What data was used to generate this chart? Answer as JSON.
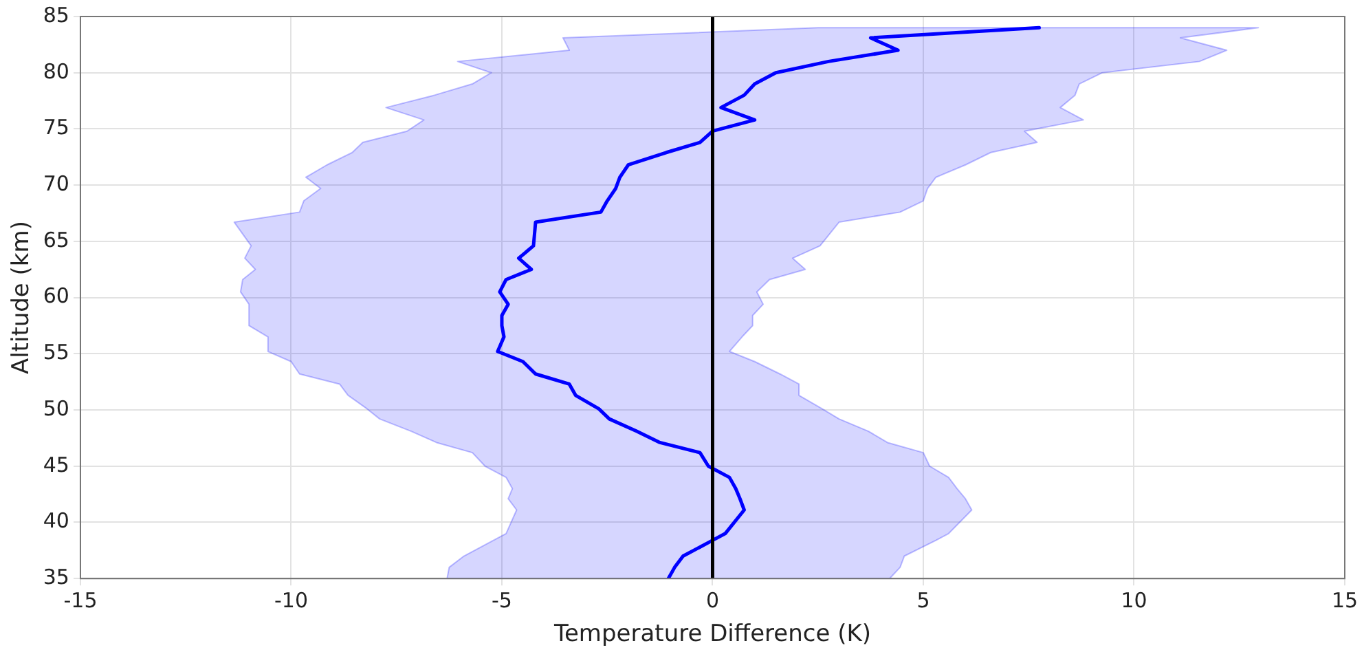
{
  "chart_data": {
    "type": "line",
    "orientation": "horizontal",
    "xlabel": "Temperature Difference (K)",
    "ylabel": "Altitude (km)",
    "xlim": [
      -15,
      15
    ],
    "xticks": [
      -15,
      -10,
      -5,
      0,
      5,
      10,
      15
    ],
    "ylim": [
      35,
      85
    ],
    "yticks": [
      35,
      40,
      45,
      50,
      55,
      60,
      65,
      70,
      75,
      80,
      85
    ],
    "grid": true,
    "legend": false,
    "marker": "none",
    "line_style": "solid",
    "ref_lines": [
      {
        "axis": "x",
        "value": 0,
        "color": "#000000"
      }
    ],
    "series": [
      {
        "color": "#0000ff",
        "x": [
          35,
          36,
          37,
          38.4,
          39,
          41.1,
          42.1,
          43,
          44,
          45,
          46.2,
          47.1,
          48.1,
          49.2,
          50.1,
          51.3,
          52.3,
          53.2,
          54.3,
          55.2,
          56.5,
          57.5,
          58.4,
          59.4,
          60.5,
          61.6,
          62.5,
          63.5,
          64.6,
          66.7,
          67.6,
          68.6,
          69.7,
          70.7,
          71.8,
          72.9,
          73.8,
          74.8,
          75.8,
          76.9,
          78,
          79,
          80,
          81,
          82,
          83.1,
          84
        ],
        "values": [
          -1.05,
          -0.9,
          -0.7,
          0.0,
          0.3,
          0.75,
          0.65,
          0.55,
          0.4,
          -0.1,
          -0.3,
          -1.25,
          -1.8,
          -2.45,
          -2.7,
          -3.25,
          -3.4,
          -4.2,
          -4.5,
          -5.1,
          -4.95,
          -5.0,
          -5.0,
          -4.85,
          -5.05,
          -4.9,
          -4.3,
          -4.6,
          -4.25,
          -4.2,
          -2.65,
          -2.5,
          -2.3,
          -2.2,
          -2.0,
          -1.1,
          -0.3,
          0.0,
          1.0,
          0.2,
          0.75,
          1.0,
          1.5,
          2.75,
          4.4,
          3.75,
          7.75
        ],
        "lower": [
          -6.3,
          -6.25,
          -5.9,
          -5.2,
          -4.9,
          -4.65,
          -4.85,
          -4.75,
          -4.9,
          -5.4,
          -5.7,
          -6.55,
          -7.15,
          -7.9,
          -8.2,
          -8.65,
          -8.85,
          -9.8,
          -10.0,
          -10.55,
          -10.55,
          -11.0,
          -11.0,
          -11.0,
          -11.2,
          -11.15,
          -10.85,
          -11.1,
          -10.95,
          -11.35,
          -9.8,
          -9.7,
          -9.3,
          -9.65,
          -9.15,
          -8.55,
          -8.3,
          -7.25,
          -6.85,
          -7.75,
          -6.6,
          -5.7,
          -5.25,
          -6.05,
          -3.4,
          -3.55,
          2.5
        ],
        "upper": [
          4.2,
          4.45,
          4.55,
          5.3,
          5.6,
          6.15,
          6.0,
          5.8,
          5.6,
          5.15,
          5.0,
          4.15,
          3.7,
          3.0,
          2.6,
          2.05,
          2.05,
          1.6,
          1.0,
          0.4,
          0.7,
          0.95,
          0.95,
          1.2,
          1.05,
          1.35,
          2.2,
          1.9,
          2.55,
          3.0,
          4.45,
          5.0,
          5.1,
          5.3,
          6.0,
          6.6,
          7.7,
          7.4,
          8.8,
          8.25,
          8.6,
          8.7,
          9.25,
          11.55,
          12.2,
          11.1,
          12.95
        ]
      }
    ]
  }
}
